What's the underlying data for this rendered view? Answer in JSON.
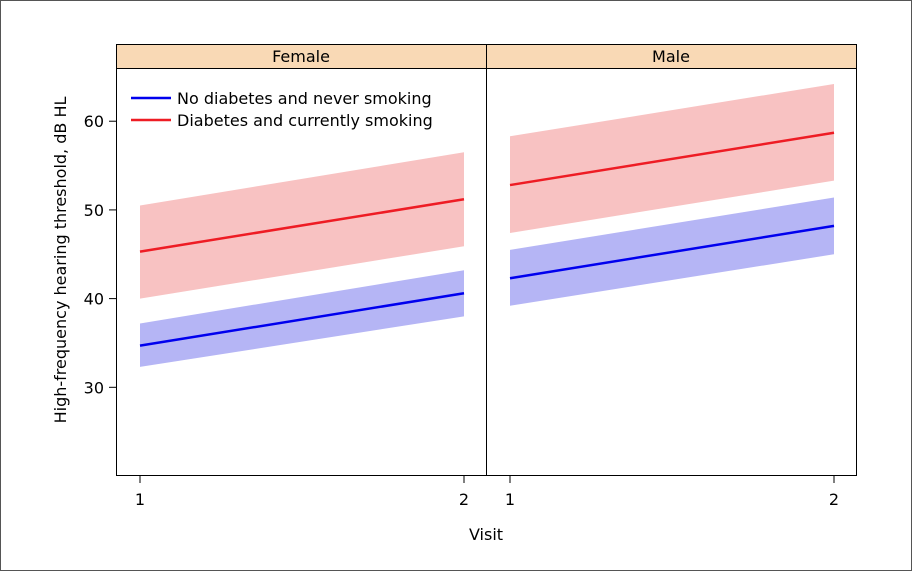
{
  "chart_data": {
    "type": "line",
    "ylabel": "High-frequency hearing threshold, dB HL",
    "xlabel": "Visit",
    "x": [
      1,
      2
    ],
    "ylim": [
      20,
      66
    ],
    "yticks": [
      30,
      40,
      50,
      60
    ],
    "grid": false,
    "legend_placement": "top-left",
    "legend": [
      {
        "label": "No diabetes and never smoking",
        "color": "#0000ee"
      },
      {
        "label": "Diabetes and currently smoking",
        "color": "#ee1c24"
      }
    ],
    "band_colors": {
      "blue": "#b5b5f5",
      "red": "#f8c2c2"
    },
    "strip_color": "#f9d9b5",
    "panels": [
      {
        "title": "Female",
        "series": [
          {
            "name": "No diabetes and never smoking",
            "y": [
              34.7,
              40.6
            ],
            "lower": [
              32.3,
              38.0
            ],
            "upper": [
              37.2,
              43.2
            ]
          },
          {
            "name": "Diabetes and currently smoking",
            "y": [
              45.3,
              51.2
            ],
            "lower": [
              40.0,
              45.9
            ],
            "upper": [
              50.5,
              56.5
            ]
          }
        ]
      },
      {
        "title": "Male",
        "series": [
          {
            "name": "No diabetes and never smoking",
            "y": [
              42.3,
              48.2
            ],
            "lower": [
              39.2,
              45.0
            ],
            "upper": [
              45.5,
              51.4
            ]
          },
          {
            "name": "Diabetes and currently smoking",
            "y": [
              52.8,
              58.7
            ],
            "lower": [
              47.4,
              53.3
            ],
            "upper": [
              58.3,
              64.2
            ]
          }
        ]
      }
    ]
  }
}
